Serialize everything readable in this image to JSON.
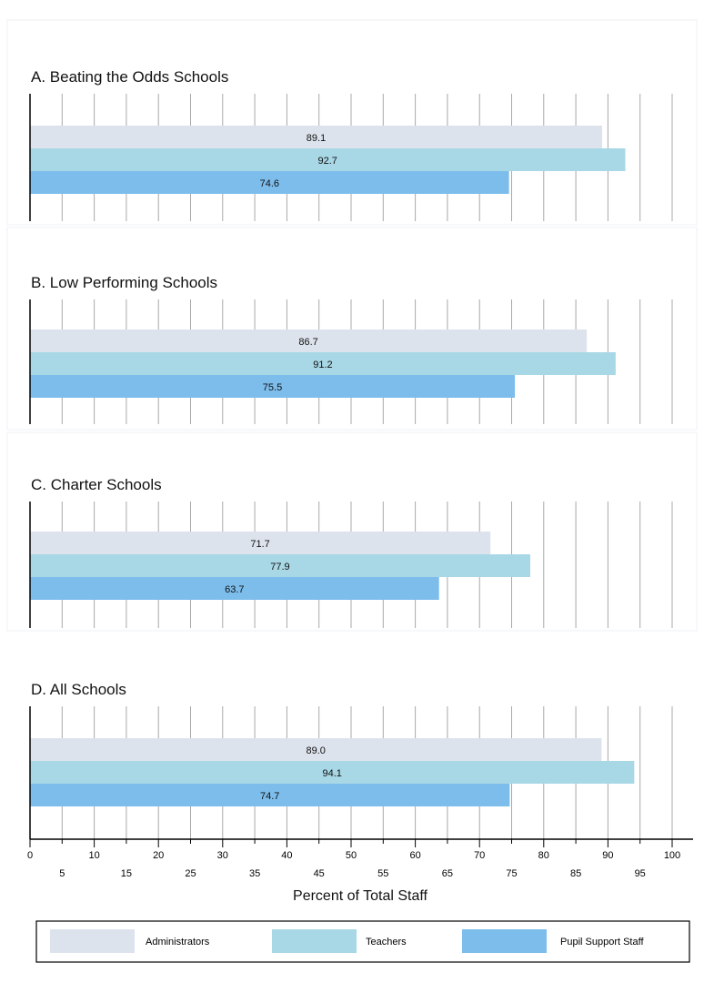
{
  "chart_data": {
    "type": "bar",
    "orientation": "horizontal",
    "xlabel": "Percent of Total Staff",
    "xlim": [
      0,
      102
    ],
    "ticks_major": [
      0,
      10,
      20,
      30,
      40,
      50,
      60,
      70,
      80,
      90,
      100
    ],
    "ticks_minor": [
      5,
      15,
      25,
      35,
      45,
      55,
      65,
      75,
      85,
      95
    ],
    "grid": true,
    "legend_position": "bottom",
    "series": [
      {
        "name": "Administrators",
        "color": "#dde3ec"
      },
      {
        "name": "Teachers",
        "color": "#a8d8e6"
      },
      {
        "name": "Pupil Support Staff",
        "color": "#7dbdec"
      }
    ],
    "panels": [
      {
        "title": "A. Beating the Odds Schools",
        "values": [
          89.1,
          92.7,
          74.6
        ],
        "labels": [
          "89.1",
          "92.7",
          "74.6"
        ]
      },
      {
        "title": "B. Low Performing Schools",
        "values": [
          86.7,
          91.2,
          75.5
        ],
        "labels": [
          "86.7",
          "91.2",
          "75.5"
        ]
      },
      {
        "title": "C. Charter Schools",
        "values": [
          71.7,
          77.9,
          63.7
        ],
        "labels": [
          "71.7",
          "77.9",
          "63.7"
        ]
      },
      {
        "title": "D. All Schools",
        "values": [
          89.0,
          94.1,
          74.7
        ],
        "labels": [
          "89.0",
          "94.1",
          "74.7"
        ]
      }
    ]
  }
}
